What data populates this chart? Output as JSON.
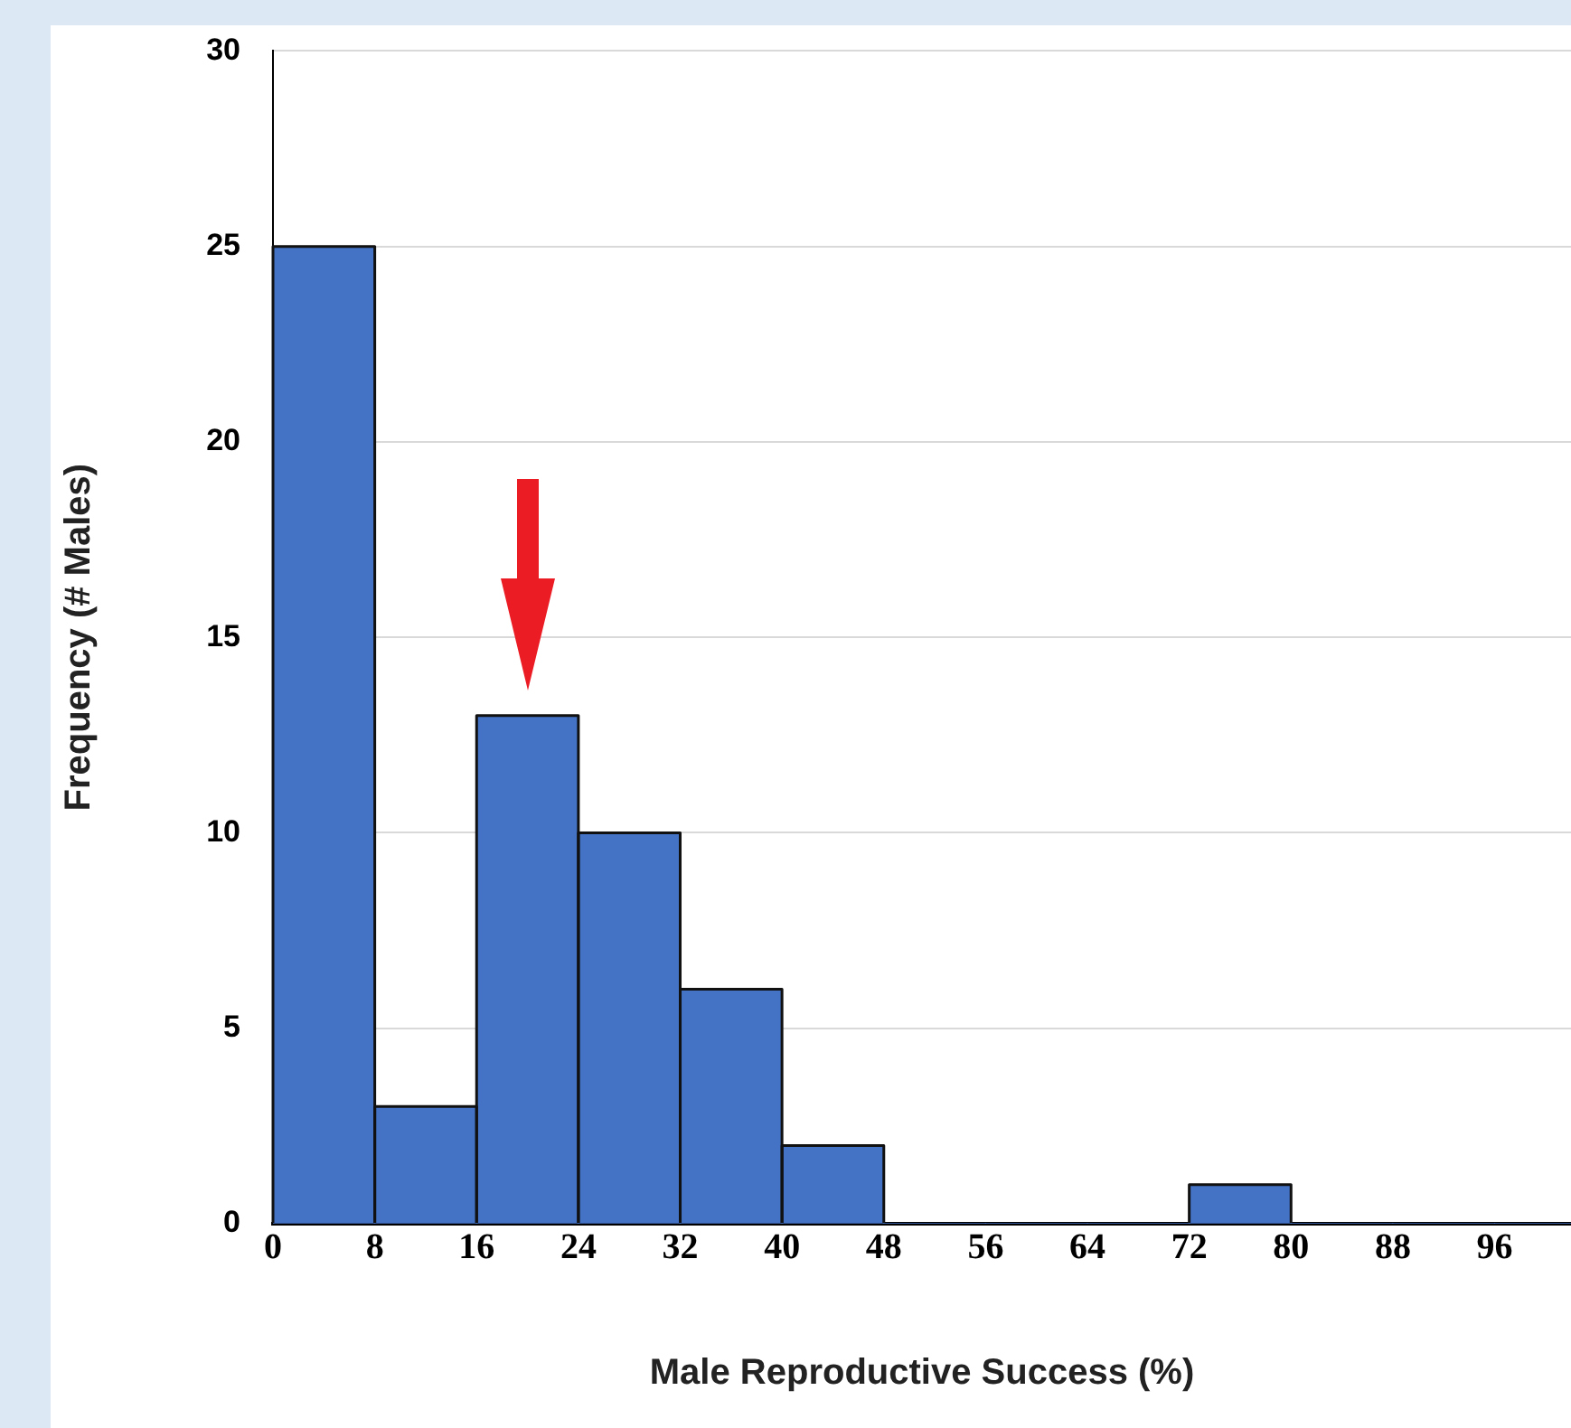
{
  "chart_data": {
    "type": "histogram",
    "xlabel": "Male Reproductive Success (%)",
    "ylabel": "Frequency (# Males)",
    "bins": [
      0,
      8,
      16,
      24,
      32,
      40,
      48,
      56,
      64,
      72,
      80,
      88,
      96,
      104
    ],
    "values": [
      25,
      3,
      13,
      10,
      6,
      2,
      0,
      0,
      0,
      1,
      0,
      0,
      0
    ],
    "color": "#4472c4",
    "xlim": [
      0,
      102
    ],
    "xticks": [
      0,
      8,
      16,
      24,
      32,
      40,
      48,
      56,
      64,
      72,
      80,
      88,
      96
    ],
    "ylim": [
      0,
      30
    ],
    "yticks": [
      0,
      5,
      10,
      15,
      20,
      25,
      30
    ],
    "grid": "y",
    "legend": false
  }
}
